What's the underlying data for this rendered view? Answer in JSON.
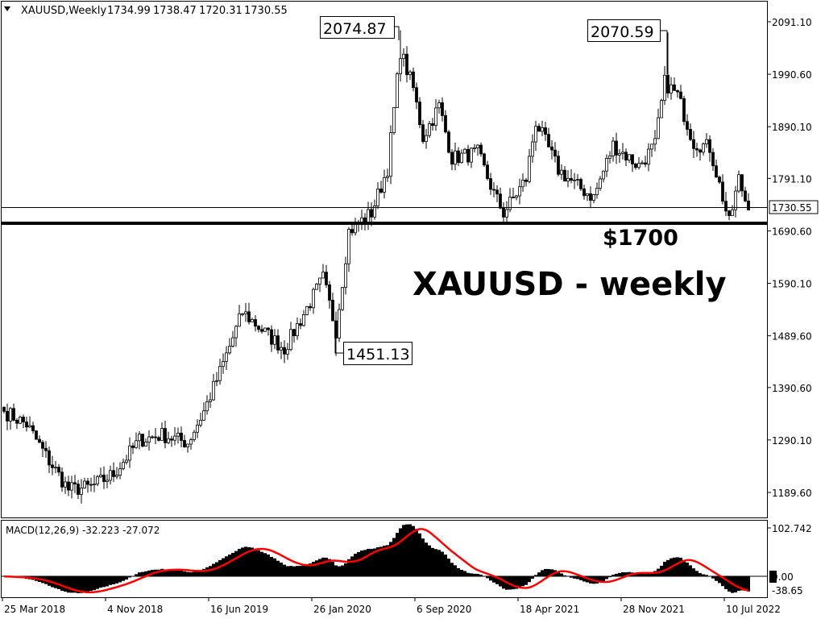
{
  "header": {
    "symbol_timeframe": "XAUUSD,Weekly",
    "open": "1734.99",
    "high": "1738.47",
    "low": "1720.31",
    "close": "1730.55",
    "menu_icon": "triangle-down-icon"
  },
  "annotations": {
    "high_2020": "2074.87",
    "high_2022": "2070.59",
    "low_2020": "1451.13",
    "support_label": "$1700",
    "support_level": 1700,
    "title": "XAUUSD - weekly",
    "current_price": "1730.55"
  },
  "macd": {
    "label": "MACD(12,26,9) -32.223 -27.072",
    "axis_labels": [
      "102.742",
      "0.00",
      "-38.65"
    ],
    "signal_color": "#ff0000",
    "histogram_color": "#000000"
  },
  "chart_data": {
    "type": "candlestick",
    "timeframe": "weekly",
    "y_axis_labels": [
      "2091.10",
      "1990.60",
      "1890.10",
      "1791.10",
      "1690.60",
      "1590.10",
      "1489.60",
      "1390.60",
      "1290.10",
      "1189.60"
    ],
    "ylim": [
      1150,
      2120
    ],
    "x_axis_labels": [
      "25 Mar 2018",
      "4 Nov 2018",
      "16 Jun 2019",
      "26 Jan 2020",
      "6 Sep 2020",
      "18 Apr 2021",
      "28 Nov 2021",
      "10 Jul 2022"
    ],
    "approx_close": [
      [
        "2018-03-25",
        1345
      ],
      [
        "2018-05-13",
        1320
      ],
      [
        "2018-07-01",
        1250
      ],
      [
        "2018-08-12",
        1195
      ],
      [
        "2018-09-30",
        1200
      ],
      [
        "2018-11-18",
        1225
      ],
      [
        "2019-01-13",
        1290
      ],
      [
        "2019-03-03",
        1300
      ],
      [
        "2019-04-28",
        1285
      ],
      [
        "2019-06-02",
        1345
      ],
      [
        "2019-07-07",
        1420
      ],
      [
        "2019-08-25",
        1535
      ],
      [
        "2019-10-20",
        1490
      ],
      [
        "2019-11-24",
        1465
      ],
      [
        "2019-12-29",
        1520
      ],
      [
        "2020-02-16",
        1600
      ],
      [
        "2020-03-15",
        1500
      ],
      [
        "2020-04-12",
        1690
      ],
      [
        "2020-05-31",
        1725
      ],
      [
        "2020-07-05",
        1810
      ],
      [
        "2020-08-02",
        2035
      ],
      [
        "2020-08-30",
        1963
      ],
      [
        "2020-09-20",
        1870
      ],
      [
        "2020-10-25",
        1930
      ],
      [
        "2020-11-22",
        1830
      ],
      [
        "2021-01-17",
        1840
      ],
      [
        "2021-02-21",
        1762
      ],
      [
        "2021-03-14",
        1725
      ],
      [
        "2021-05-02",
        1790
      ],
      [
        "2021-05-23",
        1900
      ],
      [
        "2021-07-11",
        1808
      ],
      [
        "2021-08-15",
        1780
      ],
      [
        "2021-09-26",
        1755
      ],
      [
        "2021-11-07",
        1855
      ],
      [
        "2022-01-02",
        1815
      ],
      [
        "2022-02-06",
        1855
      ],
      [
        "2022-02-27",
        1975
      ],
      [
        "2022-03-27",
        1950
      ],
      [
        "2022-05-01",
        1860
      ],
      [
        "2022-06-05",
        1850
      ],
      [
        "2022-07-03",
        1755
      ],
      [
        "2022-07-17",
        1705
      ],
      [
        "2022-08-07",
        1790
      ],
      [
        "2022-08-28",
        1730.55
      ]
    ],
    "highlights": {
      "max_2020": 2074.87,
      "max_2022": 2070.59,
      "min_2020": 1451.13,
      "support": 1700,
      "last": 1730.55
    },
    "grid": false
  }
}
